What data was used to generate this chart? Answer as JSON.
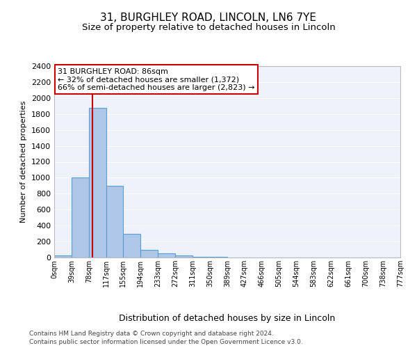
{
  "title1": "31, BURGHLEY ROAD, LINCOLN, LN6 7YE",
  "title2": "Size of property relative to detached houses in Lincoln",
  "xlabel": "Distribution of detached houses by size in Lincoln",
  "ylabel": "Number of detached properties",
  "bin_edges": [
    0,
    39,
    78,
    117,
    155,
    194,
    233,
    272,
    311,
    350,
    389,
    427,
    466,
    505,
    544,
    583,
    622,
    661,
    700,
    738,
    777
  ],
  "bar_heights": [
    25,
    1000,
    1875,
    900,
    300,
    100,
    50,
    25,
    10,
    5,
    2,
    1,
    1,
    1,
    1,
    0,
    0,
    0,
    0,
    0
  ],
  "bar_color": "#aec6e8",
  "bar_edgecolor": "#5a9fd4",
  "red_line_x": 86,
  "ylim": [
    0,
    2400
  ],
  "yticks": [
    0,
    200,
    400,
    600,
    800,
    1000,
    1200,
    1400,
    1600,
    1800,
    2000,
    2200,
    2400
  ],
  "annotation_title": "31 BURGHLEY ROAD: 86sqm",
  "annotation_line1": "← 32% of detached houses are smaller (1,372)",
  "annotation_line2": "66% of semi-detached houses are larger (2,823) →",
  "annotation_box_color": "#ffffff",
  "annotation_box_edgecolor": "#cc0000",
  "footer1": "Contains HM Land Registry data © Crown copyright and database right 2024.",
  "footer2": "Contains public sector information licensed under the Open Government Licence v3.0.",
  "background_color": "#eef2fb",
  "grid_color": "#ffffff",
  "title1_fontsize": 11,
  "title2_fontsize": 9.5,
  "ylabel_fontsize": 8,
  "xlabel_fontsize": 9,
  "tick_label_fontsize": 7,
  "annotation_fontsize": 8,
  "footer_fontsize": 6.5
}
